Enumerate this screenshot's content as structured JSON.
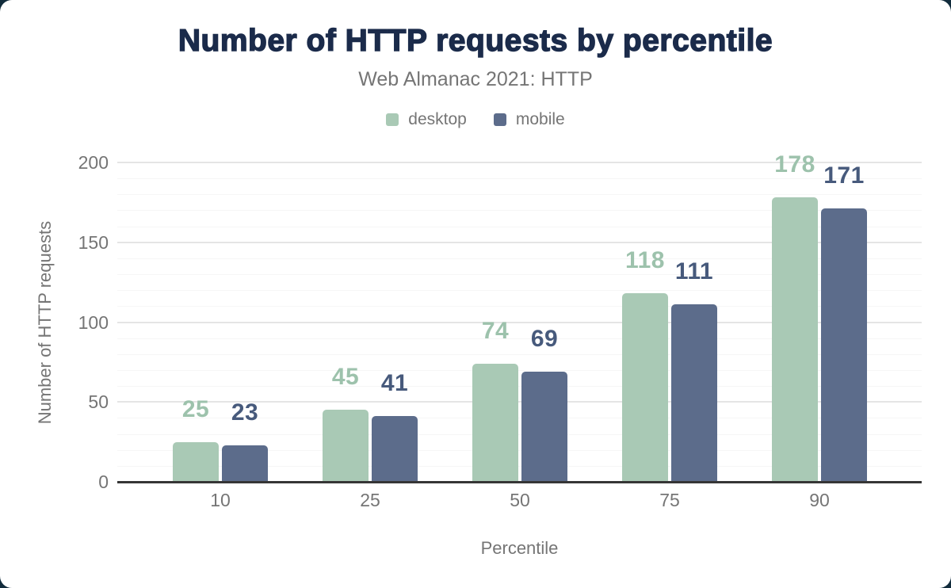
{
  "frame": {
    "background_color": "#122c3c",
    "card_color": "#ffffff"
  },
  "colors": {
    "title_text": "#1b2b4a",
    "muted_text": "#757575",
    "axis_line": "#363636",
    "major_gridline": "#e5e5e5",
    "minor_gridline": "#f6f6f6"
  },
  "chart_data": {
    "type": "bar",
    "title": "Number of HTTP requests by percentile",
    "subtitle": "Web Almanac 2021: HTTP",
    "xlabel": "Percentile",
    "ylabel": "Number of HTTP requests",
    "categories": [
      "10",
      "25",
      "50",
      "75",
      "90"
    ],
    "series": [
      {
        "name": "desktop",
        "color": "#a9c9b5",
        "label_color": "#9dc2ac",
        "values": [
          25,
          45,
          74,
          118,
          178
        ]
      },
      {
        "name": "mobile",
        "color": "#5c6c8b",
        "label_color": "#475a7c",
        "values": [
          23,
          41,
          69,
          111,
          171
        ]
      }
    ],
    "ylim": [
      0,
      200
    ],
    "ytick_step": 50,
    "minor_gridline_step": 10,
    "y_tick_labels": [
      "0",
      "50",
      "100",
      "150",
      "200"
    ],
    "grid": "horizontal",
    "legend_position": "top",
    "data_labels_shown": true
  }
}
